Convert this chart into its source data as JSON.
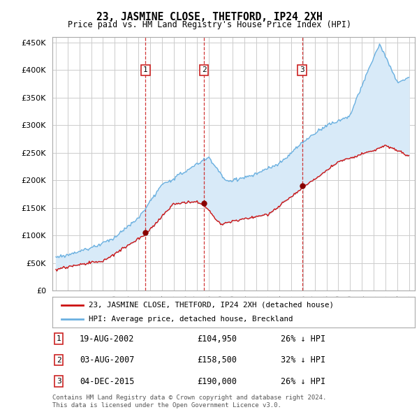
{
  "title": "23, JASMINE CLOSE, THETFORD, IP24 2XH",
  "subtitle": "Price paid vs. HM Land Registry's House Price Index (HPI)",
  "hpi_label": "HPI: Average price, detached house, Breckland",
  "property_label": "23, JASMINE CLOSE, THETFORD, IP24 2XH (detached house)",
  "sales": [
    {
      "date": "19-AUG-2002",
      "price": 104950,
      "label": "1",
      "pct": "26%",
      "x_year": 2002.62
    },
    {
      "date": "03-AUG-2007",
      "price": 158500,
      "label": "2",
      "pct": "32%",
      "x_year": 2007.59
    },
    {
      "date": "04-DEC-2015",
      "price": 190000,
      "label": "3",
      "pct": "26%",
      "x_year": 2015.92
    }
  ],
  "vline_color": "#cc2222",
  "sale_dot_color": "#880000",
  "hpi_line_color": "#6ab0e0",
  "property_line_color": "#cc1111",
  "fill_color": "#d8eaf8",
  "ylim": [
    0,
    460000
  ],
  "yticks": [
    0,
    50000,
    100000,
    150000,
    200000,
    250000,
    300000,
    350000,
    400000,
    450000
  ],
  "xlim_start": 1994.7,
  "xlim_end": 2025.5,
  "footer": "Contains HM Land Registry data © Crown copyright and database right 2024.\nThis data is licensed under the Open Government Licence v3.0.",
  "background_color": "#ffffff",
  "plot_bg_color": "#ffffff",
  "grid_color": "#cccccc",
  "border_color": "#aaaaaa"
}
